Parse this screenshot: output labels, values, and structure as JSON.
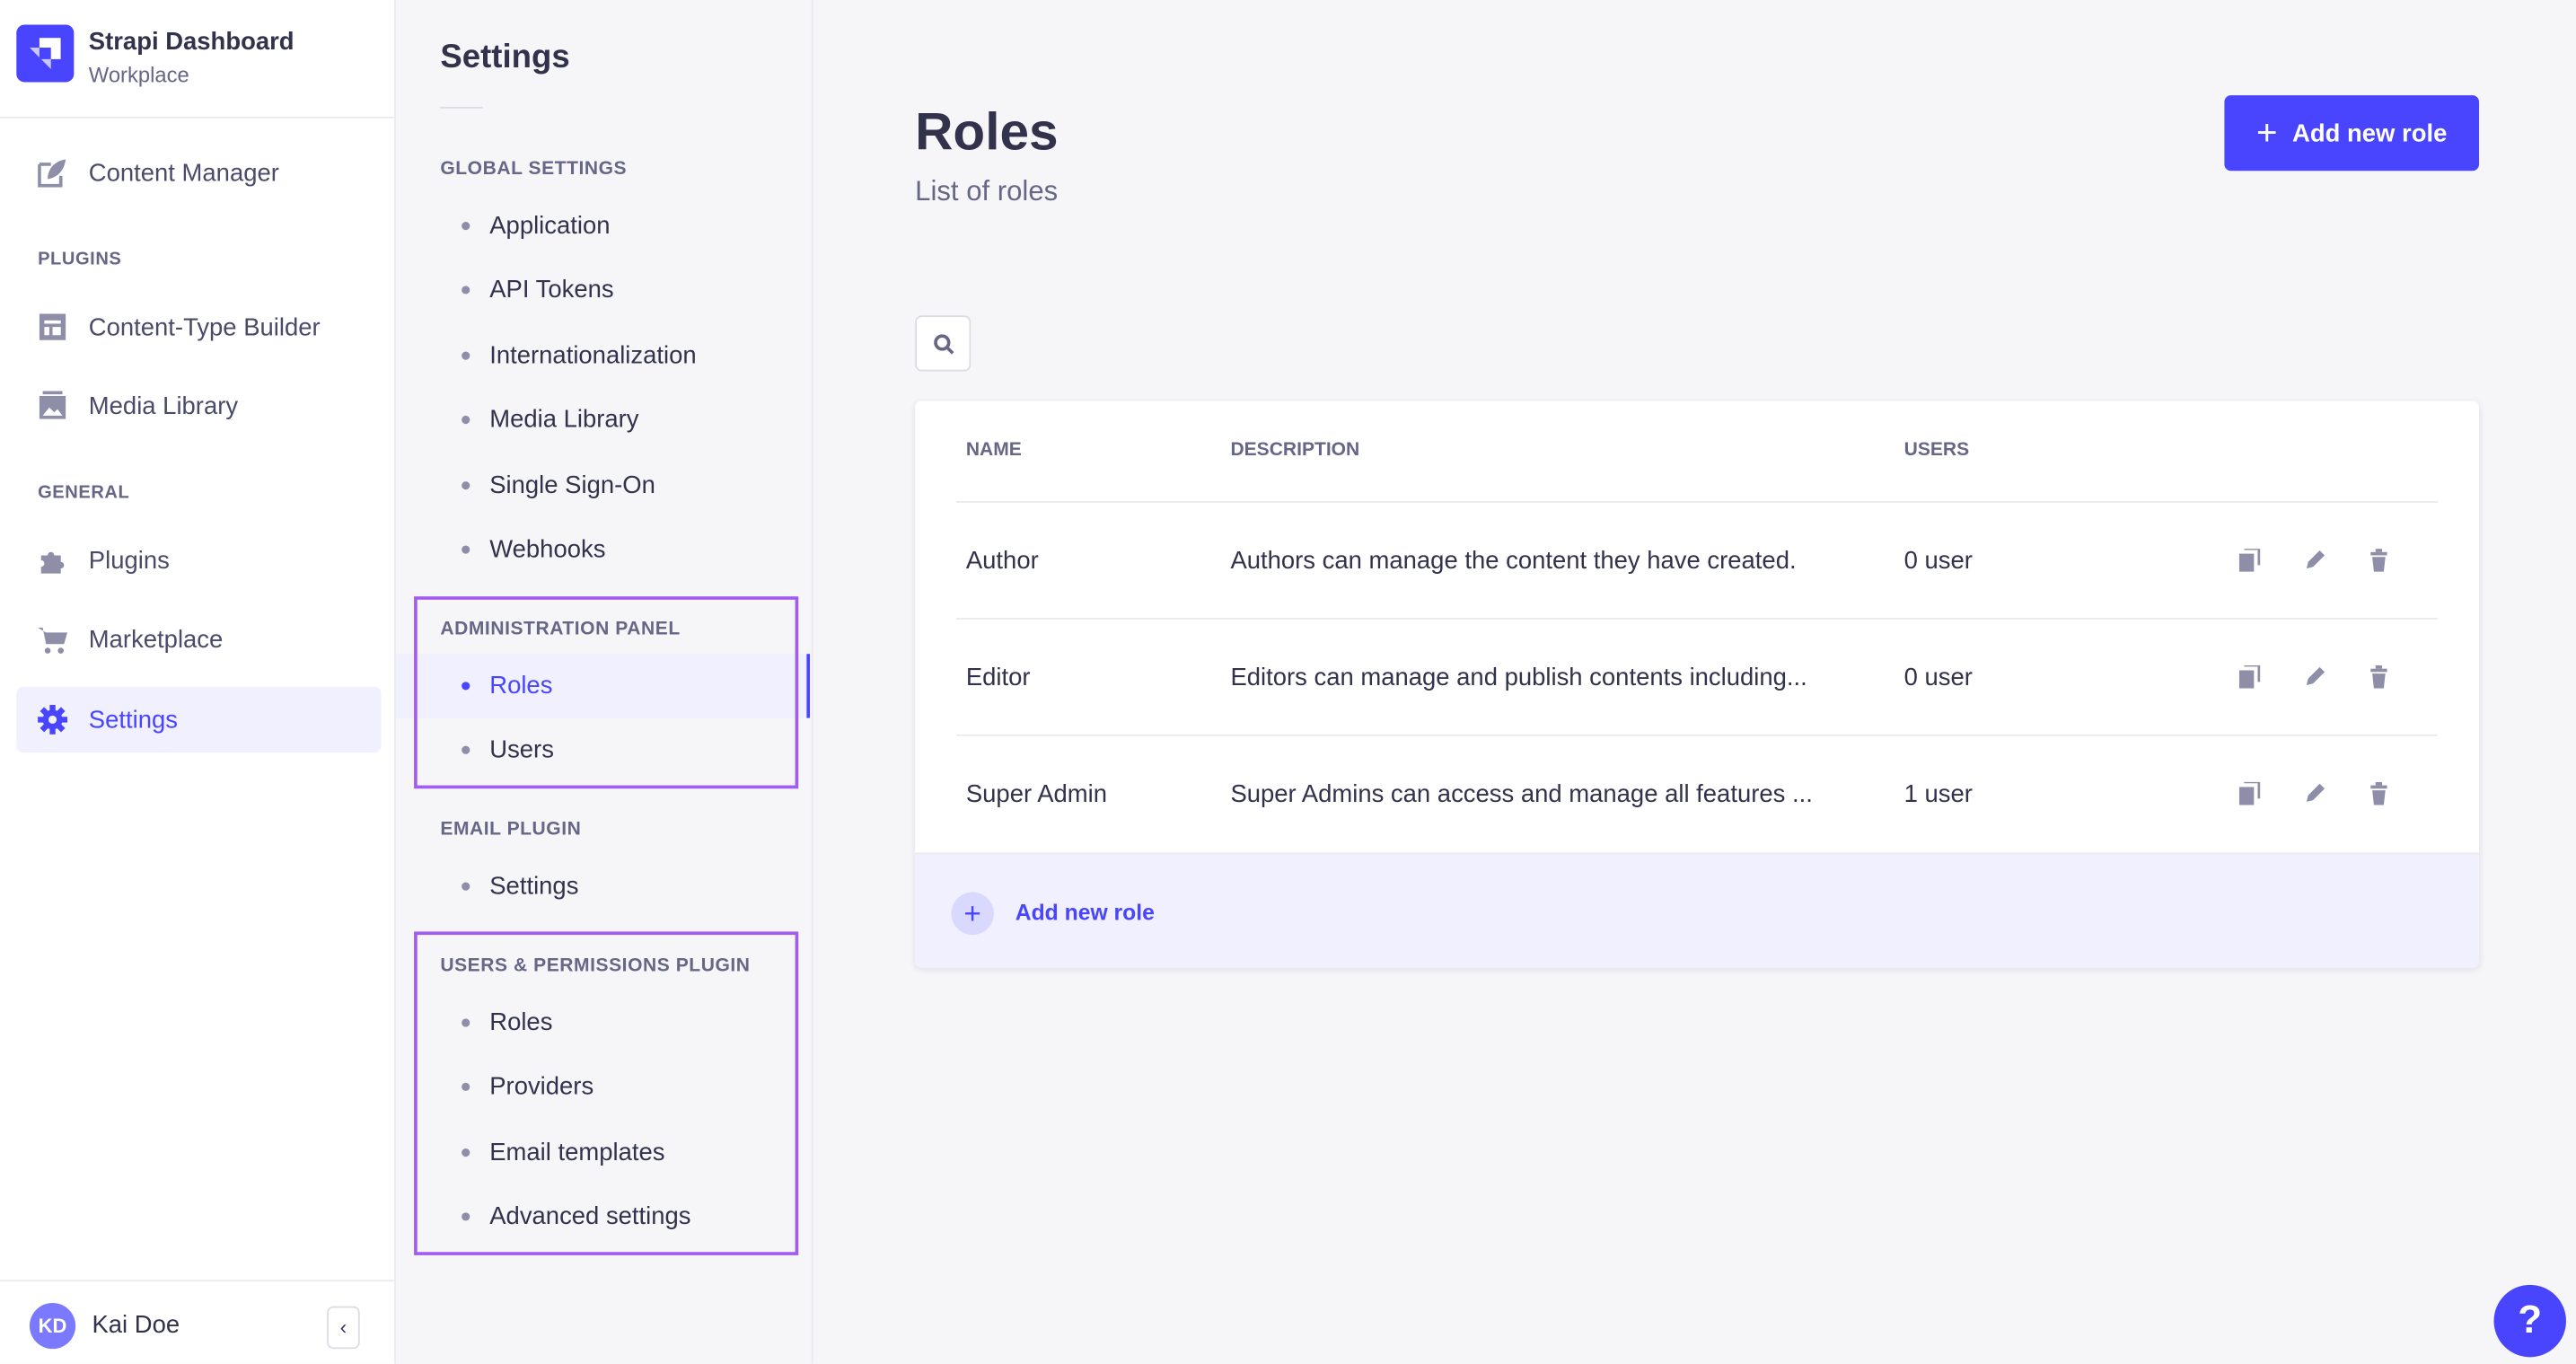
{
  "brand": {
    "title": "Strapi Dashboard",
    "subtitle": "Workplace"
  },
  "nav": {
    "content_manager": "Content Manager",
    "plugins_section": "PLUGINS",
    "content_type_builder": "Content-Type Builder",
    "media_library": "Media Library",
    "general_section": "GENERAL",
    "plugins": "Plugins",
    "marketplace": "Marketplace",
    "settings": "Settings"
  },
  "user": {
    "initials": "KD",
    "name": "Kai Doe"
  },
  "settings_nav": {
    "title": "Settings",
    "global": {
      "label": "GLOBAL SETTINGS",
      "items": [
        "Application",
        "API Tokens",
        "Internationalization",
        "Media Library",
        "Single Sign-On",
        "Webhooks"
      ]
    },
    "admin": {
      "label": "ADMINISTRATION PANEL",
      "items": [
        "Roles",
        "Users"
      ]
    },
    "email": {
      "label": "EMAIL PLUGIN",
      "items": [
        "Settings"
      ]
    },
    "up": {
      "label": "USERS & PERMISSIONS PLUGIN",
      "items": [
        "Roles",
        "Providers",
        "Email templates",
        "Advanced settings"
      ]
    }
  },
  "page": {
    "title": "Roles",
    "subtitle": "List of roles",
    "add_button": "Add new role"
  },
  "table": {
    "headers": [
      "NAME",
      "DESCRIPTION",
      "USERS"
    ],
    "rows": [
      {
        "name": "Author",
        "description": "Authors can manage the content they have created.",
        "users": "0 user"
      },
      {
        "name": "Editor",
        "description": "Editors can manage and publish contents including...",
        "users": "0 user"
      },
      {
        "name": "Super Admin",
        "description": "Super Admins can access and manage all features ...",
        "users": "1 user"
      }
    ],
    "footer_add": "Add new role"
  },
  "help": "?",
  "colors": {
    "accent": "#4945ff",
    "highlight": "#a25cf2"
  }
}
